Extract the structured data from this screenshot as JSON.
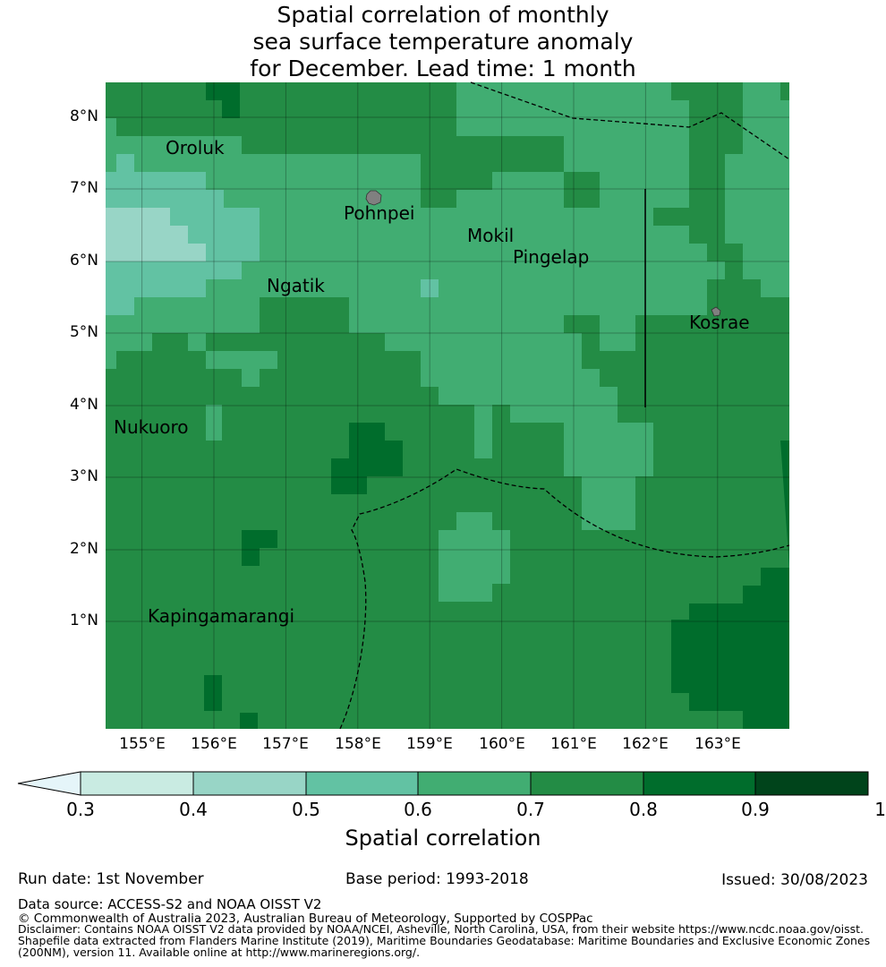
{
  "title": {
    "line1": "Spatial correlation of monthly",
    "line2": "sea surface temperature anomaly",
    "line3": "for December. Lead time: 1 month"
  },
  "map": {
    "lat_labels": [
      "8°N",
      "7°N",
      "6°N",
      "5°N",
      "4°N",
      "3°N",
      "2°N",
      "1°N"
    ],
    "lon_labels": [
      "155°E",
      "156°E",
      "157°E",
      "158°E",
      "159°E",
      "160°E",
      "161°E",
      "162°E",
      "163°E"
    ],
    "lon_range": [
      154.5,
      164.0
    ],
    "lat_range": [
      -0.25,
      8.5
    ],
    "places": [
      {
        "name": "Oroluk",
        "lon": 156.3,
        "lat": 7.55
      },
      {
        "name": "Pohnpei",
        "lon": 158.3,
        "lat": 6.85
      },
      {
        "name": "Mokil",
        "lon": 160.0,
        "lat": 6.35
      },
      {
        "name": "Pingelap",
        "lon": 160.8,
        "lat": 6.2
      },
      {
        "name": "Ngatik",
        "lon": 157.3,
        "lat": 5.8
      },
      {
        "name": "Kosrae",
        "lon": 163.0,
        "lat": 5.3
      },
      {
        "name": "Nukuoro",
        "lon": 154.7,
        "lat": 3.85
      },
      {
        "name": "Kapingamarangi",
        "lon": 155.6,
        "lat": 1.05
      }
    ],
    "colors": {
      "c04": "#c9ebe2",
      "c05": "#98d5c6",
      "c06": "#62c2a3",
      "c07": "#41ad72",
      "c08": "#238c45",
      "c09": "#006d2c",
      "c10": "#00441b",
      "under": "#e5f5f9"
    }
  },
  "colorbar": {
    "ticks": [
      "0.3",
      "0.4",
      "0.5",
      "0.6",
      "0.7",
      "0.8",
      "0.9",
      "1"
    ],
    "title": "Spatial correlation"
  },
  "footer": {
    "run_date": "Run date: 1st November",
    "base_period": "Base period: 1993-2018",
    "issued": "Issued: 30/08/2023",
    "data_source": "Data source: ACCESS-S2 and NOAA OISST V2",
    "copyright": "© Commonwealth of Australia 2023, Australian Bureau of Meteorology, Supported by COSPPac",
    "disclaimer1": "Disclaimer: Contains NOAA OISST V2 data provided by NOAA/NCEI, Asheville, North Carolina, USA, from their website https://www.ncdc.noaa.gov/oisst.",
    "disclaimer2": "Shapefile data extracted from Flanders Marine Institute (2019), Maritime Boundaries Geodatabase: Maritime Boundaries and Exclusive Economic Zones",
    "disclaimer3": "(200NM), version 11. Available online at http://www.marineregions.org/."
  }
}
